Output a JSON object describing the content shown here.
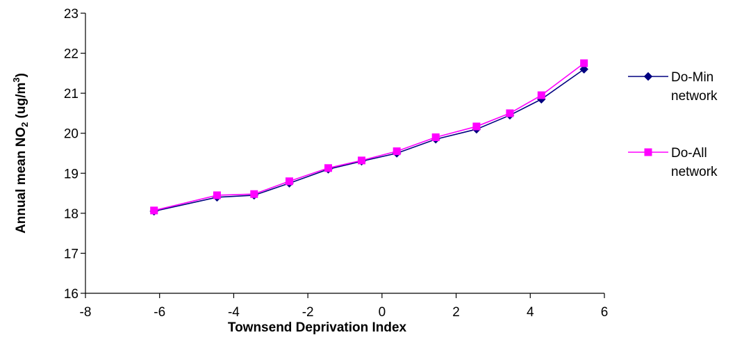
{
  "chart_data": {
    "type": "line",
    "title": "",
    "xlabel": "Townsend Deprivation Index",
    "ylabel": {
      "prefix": "Annual mean NO",
      "sub": "2",
      "middle": " (ug/m",
      "sup": "3",
      "suffix": ")"
    },
    "xlim": [
      -8,
      6
    ],
    "ylim": [
      16,
      23
    ],
    "x_ticks": [
      -8,
      -6,
      -4,
      -2,
      0,
      2,
      4,
      6
    ],
    "y_ticks": [
      16,
      17,
      18,
      19,
      20,
      21,
      22,
      23
    ],
    "grid": false,
    "legend_position": "right",
    "series": [
      {
        "name_lines": [
          "Do-Min",
          "network"
        ],
        "color": "#000080",
        "marker": "diamond",
        "x": [
          -6.15,
          -4.45,
          -3.45,
          -2.5,
          -1.45,
          -0.55,
          0.4,
          1.45,
          2.55,
          3.45,
          4.3,
          5.45
        ],
        "y": [
          18.05,
          18.4,
          18.45,
          18.75,
          19.1,
          19.3,
          19.5,
          19.85,
          20.1,
          20.45,
          20.85,
          21.6
        ]
      },
      {
        "name_lines": [
          "Do-All",
          "network"
        ],
        "color": "#FF00FF",
        "marker": "square",
        "x": [
          -6.15,
          -4.45,
          -3.45,
          -2.5,
          -1.45,
          -0.55,
          0.4,
          1.45,
          2.55,
          3.45,
          4.3,
          5.45
        ],
        "y": [
          18.07,
          18.45,
          18.48,
          18.8,
          19.13,
          19.32,
          19.55,
          19.9,
          20.17,
          20.5,
          20.95,
          21.75
        ]
      }
    ]
  }
}
